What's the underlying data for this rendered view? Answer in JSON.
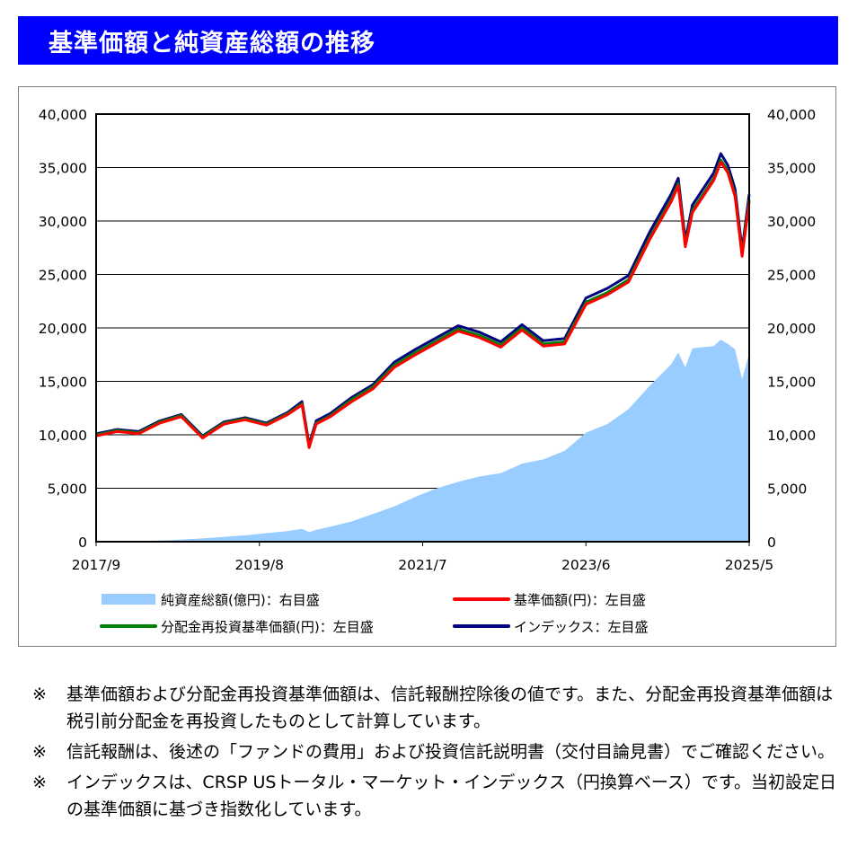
{
  "title": "基準価額と純資産総額の推移",
  "colors": {
    "title_bg": "#0000ff",
    "net_assets": "#99ccff",
    "nav": "#ff0000",
    "reinvest_nav": "#008000",
    "index": "#000080"
  },
  "chart_data": {
    "type": "line",
    "left_axis": {
      "ylim": [
        0,
        40000
      ],
      "ticks": [
        "0",
        "5,000",
        "10,000",
        "15,000",
        "20,000",
        "25,000",
        "30,000",
        "35,000",
        "40,000"
      ]
    },
    "right_axis": {
      "ylim": [
        0,
        40000
      ],
      "ticks": [
        "0",
        "5,000",
        "10,000",
        "15,000",
        "20,000",
        "25,000",
        "30,000",
        "35,000",
        "40,000"
      ]
    },
    "x_tick_labels": [
      "2017/9",
      "2019/8",
      "2021/7",
      "2023/6",
      "2025/5"
    ],
    "x_start": "2017-09",
    "x_end": "2025-05",
    "grid": true,
    "legend": [
      {
        "label": "純資産総額(億円)：右目盛",
        "type": "area",
        "color": "#99ccff"
      },
      {
        "label": "基準価額(円)：左目盛",
        "type": "line",
        "color": "#ff0000"
      },
      {
        "label": "分配金再投資基準価額(円)：左目盛",
        "type": "line",
        "color": "#008000"
      },
      {
        "label": "インデックス：左目盛",
        "type": "line",
        "color": "#000080"
      }
    ],
    "x": [
      "2017-09",
      "2017-12",
      "2018-03",
      "2018-06",
      "2018-09",
      "2018-12",
      "2019-03",
      "2019-06",
      "2019-09",
      "2019-12",
      "2020-02",
      "2020-03",
      "2020-04",
      "2020-06",
      "2020-09",
      "2020-12",
      "2021-03",
      "2021-06",
      "2021-09",
      "2021-12",
      "2022-03",
      "2022-06",
      "2022-09",
      "2022-12",
      "2023-03",
      "2023-06",
      "2023-09",
      "2023-12",
      "2024-03",
      "2024-06",
      "2024-07",
      "2024-08",
      "2024-09",
      "2024-12",
      "2025-01",
      "2025-02",
      "2025-03",
      "2025-04",
      "2025-05"
    ],
    "series": [
      {
        "name": "インデックス：左目盛",
        "axis": "left",
        "values": [
          10100,
          10500,
          10300,
          11300,
          11900,
          9900,
          11200,
          11600,
          11100,
          12100,
          13100,
          9100,
          11300,
          12000,
          13500,
          14700,
          16800,
          18000,
          19100,
          20200,
          19600,
          18700,
          20300,
          18800,
          19000,
          22800,
          23700,
          24900,
          29000,
          32500,
          34000,
          28200,
          31500,
          34500,
          36300,
          35200,
          33000,
          27300,
          32500
        ]
      },
      {
        "name": "分配金再投資基準価額(円)：左目盛",
        "axis": "left",
        "values": [
          10000,
          10400,
          10200,
          11200,
          11800,
          9800,
          11100,
          11500,
          11000,
          12000,
          12900,
          8900,
          11100,
          11800,
          13300,
          14500,
          16500,
          17700,
          18800,
          19900,
          19300,
          18400,
          20000,
          18500,
          18700,
          22400,
          23300,
          24500,
          28500,
          32000,
          33500,
          27800,
          31000,
          34000,
          35700,
          34700,
          32500,
          26900,
          32000
        ]
      },
      {
        "name": "基準価額(円)：左目盛",
        "axis": "left",
        "values": [
          9900,
          10300,
          10100,
          11100,
          11700,
          9700,
          11000,
          11400,
          10900,
          11900,
          12800,
          8800,
          11000,
          11700,
          13100,
          14300,
          16300,
          17500,
          18600,
          19700,
          19100,
          18200,
          19800,
          18300,
          18500,
          22200,
          23100,
          24300,
          28300,
          31800,
          33300,
          27600,
          30800,
          33800,
          35500,
          34500,
          32300,
          26700,
          31800
        ]
      },
      {
        "name": "純資産総額(億円)：右目盛",
        "axis": "right",
        "values": [
          0,
          20,
          50,
          120,
          200,
          300,
          450,
          600,
          800,
          1000,
          1200,
          900,
          1100,
          1400,
          1900,
          2600,
          3300,
          4200,
          5000,
          5600,
          6100,
          6400,
          7300,
          7700,
          8500,
          10200,
          11000,
          12400,
          14600,
          16600,
          17700,
          16300,
          18100,
          18300,
          18900,
          18500,
          18000,
          15200,
          17600
        ]
      }
    ]
  },
  "notes": [
    {
      "mark": "※",
      "text": "基準価額および分配金再投資基準価額は、信託報酬控除後の値です。また、分配金再投資基準価額は税引前分配金を再投資したものとして計算しています。"
    },
    {
      "mark": "※",
      "text": "信託報酬は、後述の「ファンドの費用」および投資信託説明書（交付目論見書）でご確認ください。"
    },
    {
      "mark": "※",
      "text": "インデックスは、CRSP USトータル・マーケット・インデックス（円換算ベース）です。当初設定日の基準価額に基づき指数化しています。"
    }
  ]
}
